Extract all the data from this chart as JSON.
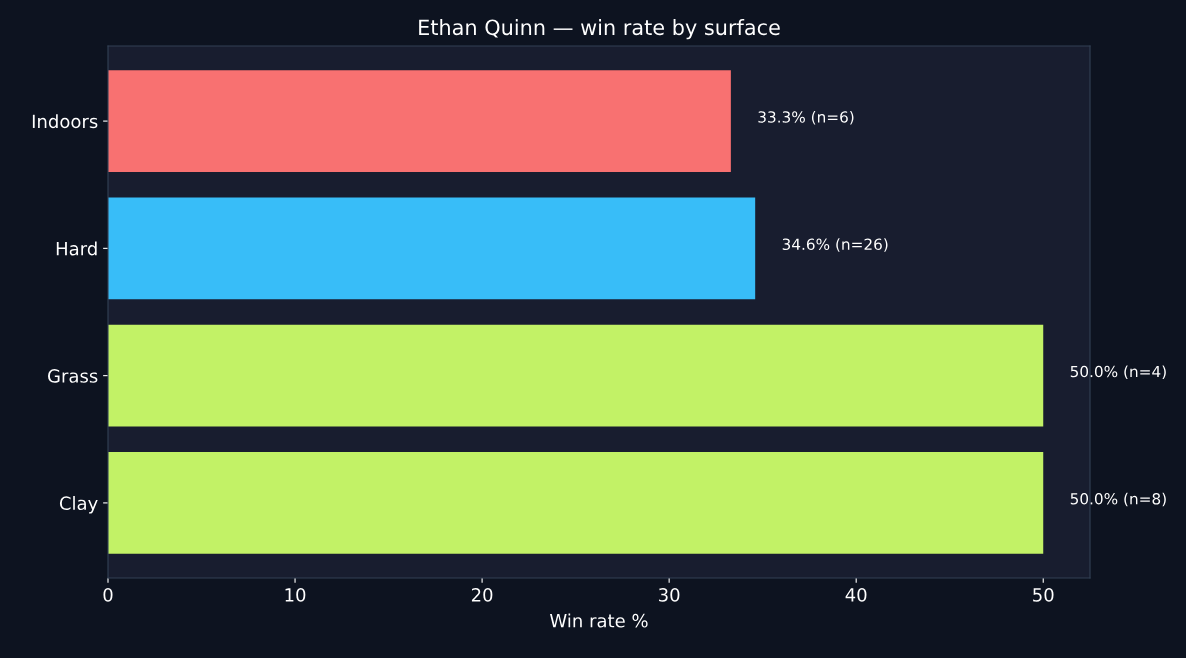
{
  "chart_data": {
    "type": "bar",
    "orientation": "horizontal",
    "title": "Ethan Quinn — win rate by surface",
    "xlabel": "Win rate %",
    "categories": [
      "Indoors",
      "Hard",
      "Grass",
      "Clay"
    ],
    "values": [
      33.3,
      34.6,
      50.0,
      50.0
    ],
    "colors": [
      "#f87171",
      "#38bdf8",
      "#c2f266",
      "#c2f266"
    ],
    "value_labels": [
      "33.3% (n=6)",
      "34.6% (n=26)",
      "50.0% (n=4)",
      "50.0% (n=8)"
    ],
    "xlim": [
      0,
      52.5
    ],
    "xticks": [
      0,
      10,
      20,
      30,
      40,
      50
    ],
    "grid": false
  }
}
